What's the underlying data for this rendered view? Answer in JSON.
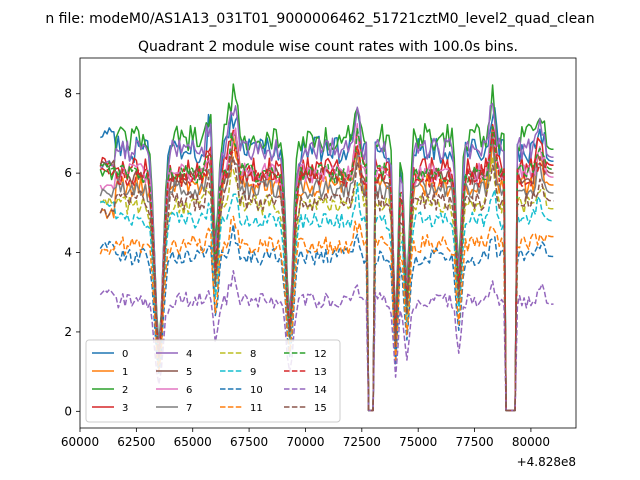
{
  "chart_data": {
    "type": "line",
    "suptitle": "n file: modeM0/AS1A13_031T01_9000006462_51721cztM0_level2_quad_clean",
    "title": "Quadrant 2 module wise count rates with 100.0s bins.",
    "xlabel": "",
    "ylabel": "",
    "x_offset_label": "+4.828e8",
    "xlim": [
      60000,
      82000
    ],
    "ylim": [
      -0.42,
      8.9
    ],
    "x_ticks": [
      60000,
      62500,
      65000,
      67500,
      70000,
      72500,
      75000,
      77500,
      80000
    ],
    "x_tick_labels": [
      "60000",
      "62500",
      "65000",
      "67500",
      "70000",
      "72500",
      "75000",
      "77500",
      "80000"
    ],
    "y_ticks": [
      0,
      2,
      4,
      6,
      8
    ],
    "y_tick_labels": [
      "0",
      "2",
      "4",
      "6",
      "8"
    ],
    "x_range": [
      60900,
      81000
    ],
    "bin_seconds": 100,
    "grid": false,
    "legend": {
      "position": "lower-left",
      "columns": 4
    },
    "segments": [
      [
        60900,
        72700
      ],
      [
        73100,
        78800
      ],
      [
        79400,
        81000
      ]
    ],
    "gaps": [
      [
        72700,
        73100
      ],
      [
        78800,
        79400
      ]
    ],
    "dips": [
      {
        "center": 63500,
        "width": 250,
        "floor": 1.6
      },
      {
        "center": 66000,
        "width": 160,
        "floor": 3.3
      },
      {
        "center": 69300,
        "width": 220,
        "floor": 2.3
      },
      {
        "center": 74000,
        "width": 140,
        "floor": 2.0
      },
      {
        "center": 74500,
        "width": 160,
        "floor": 3.0
      },
      {
        "center": 76800,
        "width": 160,
        "floor": 3.4
      }
    ],
    "spikes": [
      {
        "center": 65850,
        "width": 220,
        "height": 1.4
      },
      {
        "center": 66800,
        "width": 220,
        "height": 1.3
      },
      {
        "center": 72300,
        "width": 160,
        "height": 1.2
      },
      {
        "center": 78300,
        "width": 160,
        "height": 1.4
      },
      {
        "center": 80400,
        "width": 220,
        "height": 0.7
      }
    ],
    "series": [
      {
        "name": "0",
        "color": "#1f77b4",
        "dash": "solid",
        "level": 6.6,
        "noise": 0.35,
        "start": 7.0,
        "end": 6.3
      },
      {
        "name": "1",
        "color": "#ff7f0e",
        "dash": "solid",
        "level": 5.7,
        "noise": 0.3,
        "start": 5.0,
        "end": 5.7
      },
      {
        "name": "2",
        "color": "#2ca02c",
        "dash": "solid",
        "level": 6.9,
        "noise": 0.35,
        "start": 6.0,
        "end": 6.6
      },
      {
        "name": "3",
        "color": "#d62728",
        "dash": "solid",
        "level": 6.1,
        "noise": 0.3,
        "start": 6.3,
        "end": 6.2
      },
      {
        "name": "4",
        "color": "#9467bd",
        "dash": "solid",
        "level": 6.6,
        "noise": 0.3,
        "start": 6.2,
        "end": 6.4
      },
      {
        "name": "5",
        "color": "#8c564b",
        "dash": "solid",
        "level": 5.9,
        "noise": 0.25,
        "start": 6.2,
        "end": 6.0
      },
      {
        "name": "6",
        "color": "#e377c2",
        "dash": "solid",
        "level": 6.0,
        "noise": 0.25,
        "start": 5.6,
        "end": 5.9
      },
      {
        "name": "7",
        "color": "#7f7f7f",
        "dash": "solid",
        "level": 5.6,
        "noise": 0.25,
        "start": 5.5,
        "end": 5.5
      },
      {
        "name": "8",
        "color": "#bcbd22",
        "dash": "dashed",
        "level": 5.2,
        "noise": 0.25,
        "start": 5.3,
        "end": 5.1
      },
      {
        "name": "9",
        "color": "#17becf",
        "dash": "dashed",
        "level": 4.8,
        "noise": 0.22,
        "start": 5.2,
        "end": 4.8
      },
      {
        "name": "10",
        "color": "#1f77b4",
        "dash": "dashed",
        "level": 3.9,
        "noise": 0.22,
        "start": 4.2,
        "end": 3.9
      },
      {
        "name": "11",
        "color": "#ff7f0e",
        "dash": "dashed",
        "level": 4.2,
        "noise": 0.25,
        "start": 4.0,
        "end": 4.4
      },
      {
        "name": "12",
        "color": "#2ca02c",
        "dash": "dashed",
        "level": 6.0,
        "noise": 0.25,
        "start": 6.2,
        "end": 6.1
      },
      {
        "name": "13",
        "color": "#d62728",
        "dash": "dashed",
        "level": 5.9,
        "noise": 0.25,
        "start": 6.0,
        "end": 6.2
      },
      {
        "name": "14",
        "color": "#9467bd",
        "dash": "dashed",
        "level": 2.8,
        "noise": 0.2,
        "start": 3.0,
        "end": 2.7
      },
      {
        "name": "15",
        "color": "#8c564b",
        "dash": "dashed",
        "level": 5.3,
        "noise": 0.25,
        "start": 5.0,
        "end": 5.3
      }
    ]
  }
}
